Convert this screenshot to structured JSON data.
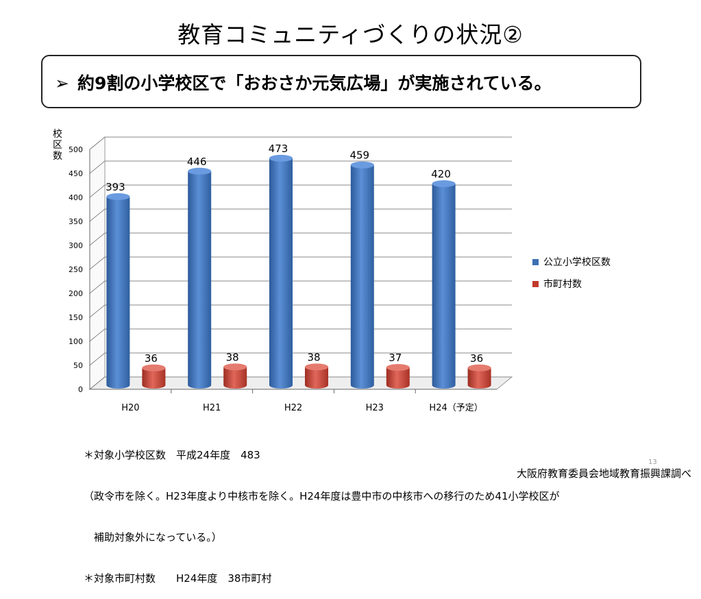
{
  "title": "教育コミュニティづくりの状況②",
  "callout": {
    "arrow": "➢",
    "text": "約9割の小学校区で「おおさか元気広場」が実施されている。"
  },
  "chart_data": {
    "type": "bar",
    "ylabel": "校区数",
    "ylim": [
      0,
      500
    ],
    "yticks": [
      0,
      50,
      100,
      150,
      200,
      250,
      300,
      350,
      400,
      450,
      500
    ],
    "categories": [
      "H20",
      "H21",
      "H22",
      "H23",
      "H24（予定）"
    ],
    "series": [
      {
        "name": "公立小学校区数",
        "values": [
          393,
          446,
          473,
          459,
          420
        ],
        "color": "#3c6fb4"
      },
      {
        "name": "市町村数",
        "values": [
          36,
          38,
          38,
          37,
          36
        ],
        "color": "#c0392b"
      }
    ],
    "legend": "right",
    "grid": true,
    "style": "3d-cylinder"
  },
  "notes": [
    "＊対象小学校区数　平成24年度　483",
    "（政令市を除く。H23年度より中核市を除く。H24年度は豊中市の中核市への移行のため41小学校区が",
    "　補助対象外になっている。）",
    "＊対象市町村数　　H24年度　38市町村"
  ],
  "source": "大阪府教育委員会地域教育振興課調べ",
  "page_number": "13"
}
